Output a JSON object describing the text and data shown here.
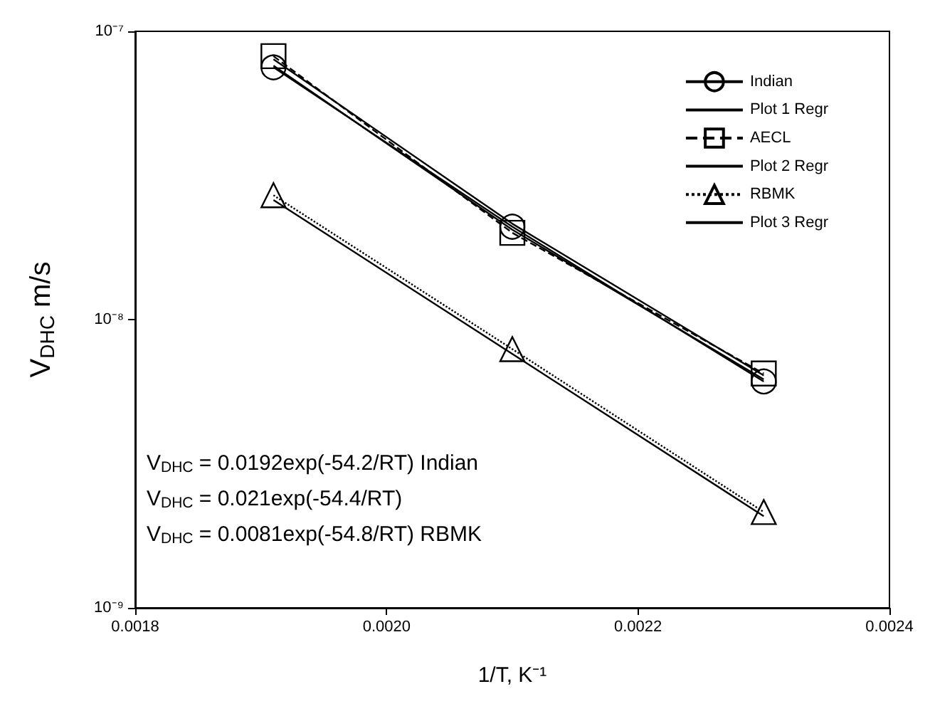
{
  "chart_data": {
    "type": "line",
    "xlabel": "1/T, K⁻¹",
    "ylabel": "V$_{DHC}$ m/s",
    "xlim": [
      0.0018,
      0.0024
    ],
    "xticks": [
      0.0018,
      {
        "value": 0.002,
        "label": "0.0020"
      },
      0.0022,
      0.0024
    ],
    "ylim": [
      1e-09,
      1e-07
    ],
    "yticks": [
      {
        "value": 1e-09,
        "label": "10⁻⁹"
      },
      {
        "value": 1e-08,
        "label": "10⁻⁸"
      },
      {
        "value": 1e-07,
        "label": "10⁻⁷"
      }
    ],
    "log": "y",
    "grid": false,
    "legend": "top right",
    "x": [
      0.00191,
      0.0021,
      0.0023
    ],
    "series": [
      {
        "name": "Indian",
        "color": "#000000",
        "marker": "circle",
        "line_style": "solid",
        "values": [
          7.5e-08,
          2.1e-08,
          6.1e-09
        ]
      },
      {
        "name": "Plot 1 Regr",
        "color": "#000000",
        "marker": "none",
        "line_style": "solid",
        "values": [
          7.6e-08,
          2.05e-08,
          6.2e-09
        ]
      },
      {
        "name": "AECL",
        "color": "#000000",
        "marker": "square",
        "line_style": "dashed",
        "values": [
          8.2e-08,
          2e-08,
          6.5e-09
        ]
      },
      {
        "name": "Plot 2 Regr",
        "color": "#000000",
        "marker": "none",
        "line_style": "solid",
        "values": [
          8e-08,
          2.15e-08,
          6.4e-09
        ]
      },
      {
        "name": "RBMK",
        "color": "#000000",
        "marker": "triangle",
        "line_style": "dotted",
        "values": [
          2.7e-08,
          7.9e-09,
          2.15e-09
        ]
      },
      {
        "name": "Plot 3 Regr",
        "color": "#000000",
        "marker": "none",
        "line_style": "solid",
        "values": [
          2.6e-08,
          7.6e-09,
          2.08e-09
        ]
      }
    ],
    "annotations": [
      "V$_{DHC}$ = 0.0192exp(-54.2/RT) Indian",
      "V$_{DHC}$ = 0.021exp(-54.4/RT)",
      "V$_{DHC}$ = 0.0081exp(-54.8/RT) RBMK"
    ]
  }
}
